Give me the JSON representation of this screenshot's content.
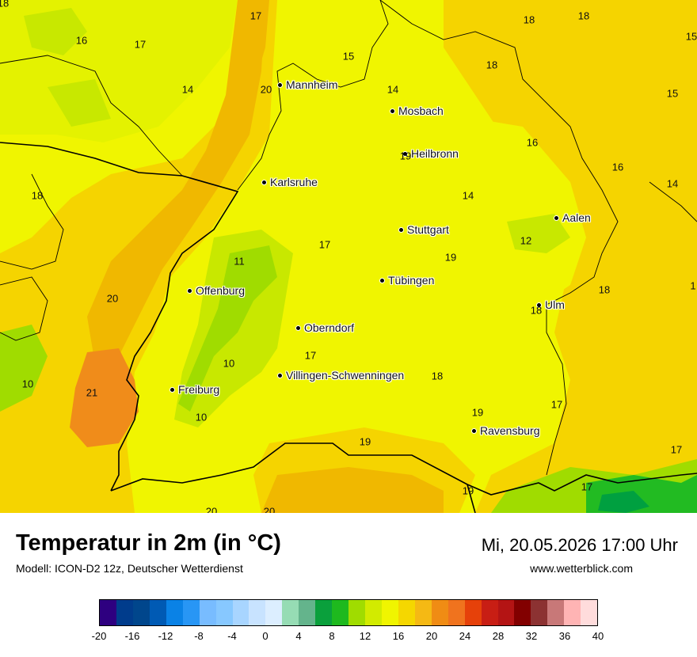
{
  "map": {
    "colors": {
      "yellow": "#f0f500",
      "pale_yellow": "#e4f200",
      "gold": "#f5d400",
      "orange_gold": "#f0b800",
      "orange": "#f08c1a",
      "yellowgreen": "#c8e800",
      "lightgreen": "#a0dc00",
      "green": "#22bb22",
      "darkgreen": "#00a040"
    },
    "cities": [
      {
        "name": "Mannheim"
      },
      {
        "name": "Mosbach"
      },
      {
        "name": "Heilbronn"
      },
      {
        "name": "Karlsruhe"
      },
      {
        "name": "Stuttgart"
      },
      {
        "name": "Aalen"
      },
      {
        "name": "Tübingen"
      },
      {
        "name": "Offenburg"
      },
      {
        "name": "Ulm"
      },
      {
        "name": "Oberndorf"
      },
      {
        "name": "Villingen-Schwenningen"
      },
      {
        "name": "Freiburg"
      },
      {
        "name": "Ravensburg"
      }
    ],
    "values": [
      "18",
      "17",
      "18",
      "18",
      "16",
      "17",
      "15",
      "18",
      "14",
      "20",
      "14",
      "15",
      "15",
      "16",
      "16",
      "18",
      "14",
      "14",
      "19",
      "12",
      "17",
      "11",
      "19",
      "20",
      "1",
      "18",
      "18",
      "17",
      "10",
      "10",
      "21",
      "18",
      "10",
      "19",
      "17",
      "19",
      "17",
      "17",
      "19",
      "20",
      "20"
    ]
  },
  "footer": {
    "title": "Temperatur in 2m (in °C)",
    "subtitle": "Modell: ICON-D2 12z, Deutscher Wetterdienst",
    "datetime": "Mi, 20.05.2026 17:00 Uhr",
    "website": "www.wetterblick.com"
  },
  "legend": {
    "colors": [
      "#2e0080",
      "#003c8c",
      "#00468c",
      "#005ab4",
      "#0a82e6",
      "#2896f5",
      "#78bcff",
      "#87c8ff",
      "#a8d5ff",
      "#c8e3ff",
      "#dceeff",
      "#96dcb4",
      "#64b48c",
      "#0aa03c",
      "#1eb91e",
      "#a0dc00",
      "#d2eb00",
      "#f0f500",
      "#f5d700",
      "#f5b914",
      "#f08c14",
      "#f0731e",
      "#e6410a",
      "#c81e14",
      "#b41414",
      "#820000",
      "#8c3232",
      "#c87878",
      "#ffb4b4",
      "#ffdcdc"
    ],
    "ticks": [
      "-20",
      "-16",
      "-12",
      "-8",
      "-4",
      "0",
      "4",
      "8",
      "12",
      "16",
      "20",
      "24",
      "28",
      "32",
      "36",
      "40"
    ]
  }
}
